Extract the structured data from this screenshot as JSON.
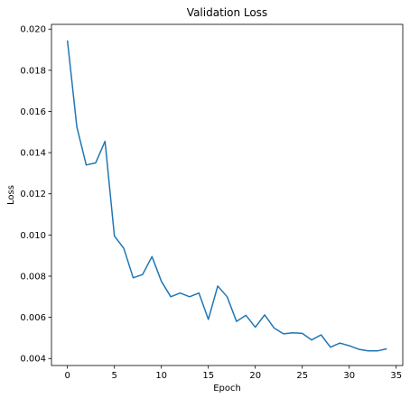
{
  "chart_data": {
    "type": "line",
    "title": "Validation Loss",
    "xlabel": "Epoch",
    "ylabel": "Loss",
    "xlim": [
      -1.7,
      35.7
    ],
    "ylim": [
      0.00366,
      0.02023
    ],
    "xticks": [
      0,
      5,
      10,
      15,
      20,
      25,
      30,
      35
    ],
    "xtick_labels": [
      "0",
      "5",
      "10",
      "15",
      "20",
      "25",
      "30",
      "35"
    ],
    "yticks": [
      0.004,
      0.006,
      0.008,
      0.01,
      0.012,
      0.014,
      0.016,
      0.018,
      0.02
    ],
    "ytick_labels": [
      "0.004",
      "0.006",
      "0.008",
      "0.010",
      "0.012",
      "0.014",
      "0.016",
      "0.018",
      "0.020"
    ],
    "grid": false,
    "line_color": "#1f77b4",
    "series": [
      {
        "x": [
          0,
          1,
          2,
          3,
          4,
          5,
          6,
          7,
          8,
          9,
          10,
          11,
          12,
          13,
          14,
          15,
          16,
          17,
          18,
          19,
          20,
          21,
          22,
          23,
          24,
          25,
          26,
          27,
          28,
          29,
          30,
          31,
          32,
          33,
          34
        ],
        "values": [
          0.01945,
          0.01525,
          0.0134,
          0.0135,
          0.01455,
          0.00995,
          0.00935,
          0.00792,
          0.00808,
          0.00895,
          0.00775,
          0.007,
          0.00718,
          0.007,
          0.00718,
          0.0059,
          0.00752,
          0.007,
          0.0058,
          0.0061,
          0.00552,
          0.00612,
          0.00548,
          0.0052,
          0.00525,
          0.00522,
          0.0049,
          0.00515,
          0.00455,
          0.00475,
          0.00462,
          0.00445,
          0.00437,
          0.00437,
          0.00447
        ]
      }
    ]
  }
}
